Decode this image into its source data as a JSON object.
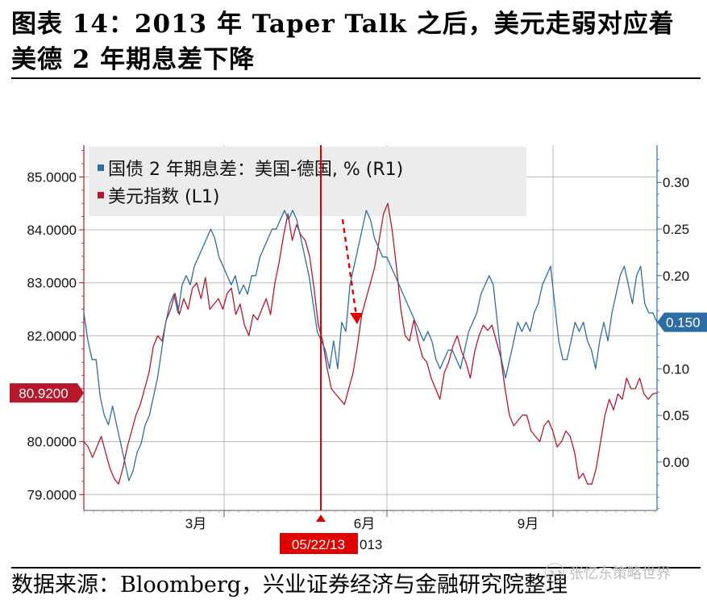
{
  "title_line1": "图表 14：2013 年 Taper Talk 之后，美元走弱对应着",
  "title_line2": "美德 2 年期息差下降",
  "source": "数据来源：Bloomberg，兴业证券经济与金融研究院整理",
  "watermark": "张忆东策略世界",
  "chart_data": {
    "type": "line",
    "legend": [
      "国债 2 年期息差：美国-德国, % (R1)",
      "美元指数 (L1)"
    ],
    "x_ticks": [
      "3月",
      "6月",
      "9月"
    ],
    "marker_label": "05/22/13",
    "marker_tail": "013",
    "left_axis": {
      "ticks": [
        "79.0000",
        "80.0000",
        "81.0000",
        "82.0000",
        "83.0000",
        "84.0000",
        "85.0000"
      ],
      "ylim": [
        78.7,
        85.6
      ]
    },
    "right_axis": {
      "ticks": [
        "0.00",
        "0.05",
        "0.10",
        "0.15",
        "0.20",
        "0.25",
        "0.30"
      ],
      "ylim": [
        -0.052,
        0.34
      ]
    },
    "last_left": "80.9200",
    "last_right": "0.150",
    "colors": {
      "spread": "#2e6da4",
      "dxy": "#b5182a",
      "marker": "#e00000",
      "tag_left": "#b5182a",
      "tag_right": "#2e6da4"
    },
    "series": [
      {
        "name": "国债 2 年期息差：美国-德国, % (R1)",
        "axis": "right",
        "values": [
          0.16,
          0.13,
          0.11,
          0.11,
          0.07,
          0.05,
          0.04,
          0.06,
          0.04,
          0.02,
          0.0,
          -0.02,
          -0.01,
          0.01,
          0.02,
          0.04,
          0.05,
          0.07,
          0.09,
          0.12,
          0.15,
          0.17,
          0.18,
          0.16,
          0.19,
          0.2,
          0.19,
          0.21,
          0.22,
          0.23,
          0.24,
          0.25,
          0.24,
          0.22,
          0.21,
          0.2,
          0.19,
          0.2,
          0.18,
          0.19,
          0.18,
          0.2,
          0.2,
          0.22,
          0.23,
          0.24,
          0.25,
          0.25,
          0.26,
          0.27,
          0.26,
          0.27,
          0.26,
          0.24,
          0.22,
          0.2,
          0.17,
          0.14,
          0.13,
          0.12,
          0.1,
          0.13,
          0.1,
          0.15,
          0.14,
          0.19,
          0.21,
          0.23,
          0.25,
          0.27,
          0.26,
          0.24,
          0.23,
          0.22,
          0.22,
          0.21,
          0.2,
          0.19,
          0.18,
          0.17,
          0.16,
          0.15,
          0.14,
          0.13,
          0.14,
          0.13,
          0.11,
          0.1,
          0.11,
          0.12,
          0.12,
          0.11,
          0.1,
          0.12,
          0.14,
          0.15,
          0.16,
          0.18,
          0.19,
          0.2,
          0.19,
          0.15,
          0.11,
          0.09,
          0.11,
          0.13,
          0.15,
          0.14,
          0.15,
          0.14,
          0.16,
          0.17,
          0.19,
          0.2,
          0.21,
          0.17,
          0.13,
          0.11,
          0.11,
          0.13,
          0.15,
          0.14,
          0.15,
          0.13,
          0.12,
          0.1,
          0.13,
          0.15,
          0.13,
          0.16,
          0.18,
          0.2,
          0.21,
          0.19,
          0.17,
          0.2,
          0.21,
          0.17,
          0.16,
          0.16,
          0.15
        ]
      },
      {
        "name": "美元指数 (L1)",
        "axis": "left",
        "values": [
          80.0,
          79.9,
          79.7,
          79.9,
          80.1,
          79.8,
          79.5,
          79.3,
          79.2,
          79.5,
          79.9,
          80.2,
          80.5,
          80.7,
          81.0,
          81.3,
          81.8,
          82.0,
          81.9,
          82.3,
          82.5,
          82.8,
          82.4,
          82.7,
          82.5,
          82.9,
          83.0,
          82.7,
          83.1,
          82.5,
          82.6,
          82.7,
          82.5,
          82.8,
          82.9,
          82.4,
          82.6,
          82.2,
          82.0,
          82.4,
          82.3,
          82.5,
          82.7,
          82.4,
          83.0,
          83.4,
          83.9,
          84.3,
          83.8,
          84.1,
          83.9,
          83.8,
          83.5,
          82.9,
          82.2,
          81.9,
          81.4,
          81.0,
          80.9,
          80.8,
          80.7,
          81.0,
          81.3,
          81.8,
          82.4,
          82.7,
          83.0,
          83.3,
          83.8,
          84.3,
          84.5,
          84.0,
          83.3,
          82.5,
          82.0,
          81.9,
          82.3,
          81.9,
          81.6,
          81.5,
          81.2,
          81.0,
          80.8,
          81.3,
          81.5,
          81.8,
          82.0,
          81.7,
          81.5,
          81.2,
          81.7,
          82.0,
          82.2,
          82.1,
          82.2,
          81.9,
          81.6,
          81.0,
          80.5,
          80.3,
          80.4,
          80.5,
          80.5,
          80.2,
          80.1,
          80.0,
          80.3,
          80.4,
          80.2,
          79.9,
          80.0,
          80.2,
          80.1,
          79.8,
          79.3,
          79.4,
          79.2,
          79.2,
          79.5,
          80.0,
          80.5,
          80.8,
          80.6,
          80.9,
          80.8,
          81.2,
          81.0,
          81.0,
          81.2,
          80.9,
          80.8,
          80.9,
          80.92
        ]
      }
    ]
  }
}
